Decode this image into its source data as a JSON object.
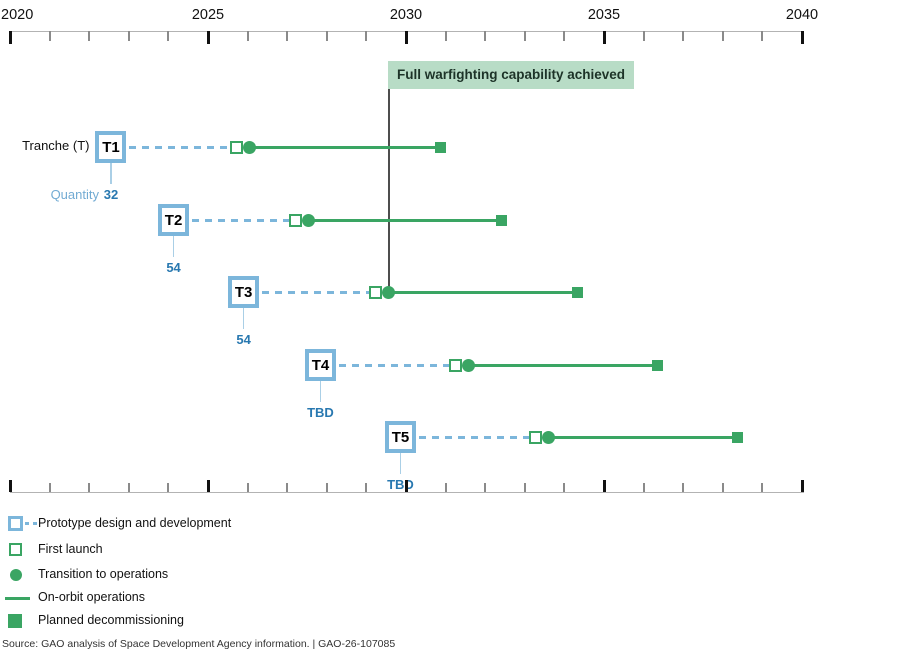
{
  "source_line": "Source: GAO analysis of Space Development Agency information.  |  GAO-26-107085",
  "chart_data": {
    "type": "timeline",
    "title": "",
    "axis": {
      "start_year": 2020,
      "end_year": 2040,
      "tick_interval_years": 1,
      "labeled_ticks": [
        2020,
        2025,
        2030,
        2035,
        2040
      ]
    },
    "row_label": "Tranche (T)",
    "quantity_caption": "Quantity",
    "annotation": {
      "label": "Full warfighting capability achieved",
      "year": 2029.57
    },
    "tranches": [
      {
        "name": "T1",
        "quantity": "32",
        "box_year": 2022.55,
        "first_launch_year": 2025.73,
        "transition_year": 2026.04,
        "decommission_year": 2030.88
      },
      {
        "name": "T2",
        "quantity": "54",
        "box_year": 2024.13,
        "first_launch_year": 2027.22,
        "transition_year": 2027.53,
        "decommission_year": 2032.4
      },
      {
        "name": "T3",
        "quantity": "54",
        "box_year": 2025.9,
        "first_launch_year": 2029.24,
        "transition_year": 2029.57,
        "decommission_year": 2034.32
      },
      {
        "name": "T4",
        "quantity": "TBD",
        "box_year": 2027.84,
        "first_launch_year": 2031.26,
        "transition_year": 2031.57,
        "decommission_year": 2036.36
      },
      {
        "name": "T5",
        "quantity": "TBD",
        "box_year": 2029.86,
        "first_launch_year": 2033.28,
        "transition_year": 2033.59,
        "decommission_year": 2038.38
      }
    ],
    "legend": [
      {
        "icon": "prototype-square-dash-icon",
        "label": "Prototype design and development"
      },
      {
        "icon": "first-launch-open-square-icon",
        "label": "First launch"
      },
      {
        "icon": "transition-filled-circle-icon",
        "label": "Transition to operations"
      },
      {
        "icon": "on-orbit-line-icon",
        "label": "On-orbit operations"
      },
      {
        "icon": "decommission-filled-square-icon",
        "label": "Planned decommissioning"
      }
    ],
    "colors": {
      "blue": "#7cb6db",
      "blue_connector": "#aacfe6",
      "quantity_caption_text": "#72abd3",
      "quantity_value_text": "#2878b0",
      "green": "#3aa563",
      "annotation_bg": "#b8dcc6",
      "annotation_text": "#1d3328",
      "axis_line": "#b3b3b3",
      "major_tick": "#111111",
      "minor_tick": "#8a8a8a",
      "callout_line": "#4d4d4d",
      "text": "#111111",
      "source_text": "#333333"
    }
  }
}
